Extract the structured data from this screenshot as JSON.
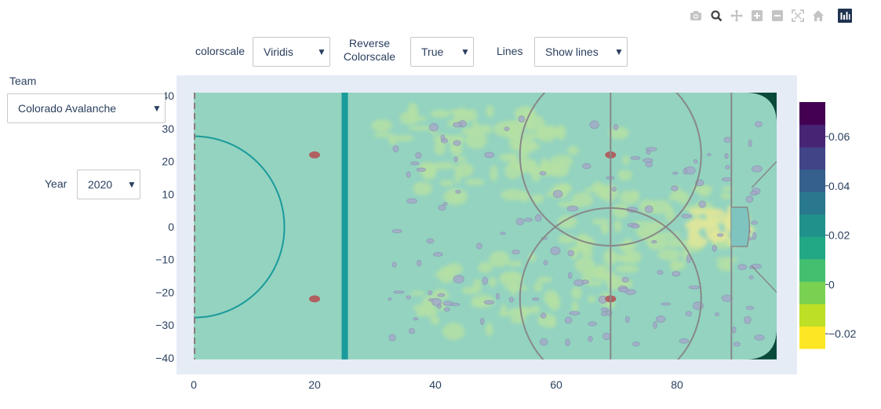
{
  "modebar": {
    "icons": [
      "camera-icon",
      "zoom-icon",
      "pan-icon",
      "zoom-in-icon",
      "zoom-out-icon",
      "autoscale-icon",
      "home-icon",
      "plotly-logo-icon"
    ]
  },
  "controls": {
    "colorscale": {
      "label": "colorscale",
      "value": "Viridis"
    },
    "reverse": {
      "label_line1": "Reverse",
      "label_line2": "Colorscale",
      "value": "True"
    },
    "lines": {
      "label": "Lines",
      "value": "Show lines"
    },
    "team": {
      "label": "Team",
      "value": "Colorado Avalanche"
    },
    "year": {
      "label": "Year",
      "value": "2020"
    }
  },
  "colors": {
    "plot_bg": "#e5ecf6",
    "rink_fill": "#93d3c0",
    "contour_light": "#b5e0a3",
    "contour_mid": "#a4a8c8",
    "contour_high": "#dfe69a",
    "line_teal": "#1a9a9a",
    "line_red": "#b06060",
    "line_gray": "#888888",
    "dark_corner": "#0a4a3a"
  },
  "chart_data": {
    "type": "heatmap",
    "x_ticks": [
      "0",
      "20",
      "40",
      "60",
      "80"
    ],
    "x_tick_values": [
      0,
      20,
      40,
      60,
      80
    ],
    "y_ticks": [
      "40",
      "30",
      "20",
      "10",
      "0",
      "−10",
      "−20",
      "−30",
      "−40"
    ],
    "y_tick_values": [
      40,
      30,
      20,
      10,
      0,
      -10,
      -20,
      -30,
      -40
    ],
    "xlim": [
      -3,
      100
    ],
    "ylim": [
      -42.5,
      42.5
    ],
    "colorbar": {
      "colorscale": "Viridis",
      "reversed": true,
      "range": [
        -0.026,
        0.074
      ],
      "tick_labels": [
        "0.06",
        "0.04",
        "0.02",
        "0",
        "−0.02"
      ],
      "tick_values": [
        0.06,
        0.04,
        0.02,
        0,
        -0.02
      ],
      "levels": [
        "#fde725",
        "#bddf26",
        "#7ad151",
        "#44bf70",
        "#22a884",
        "#21918c",
        "#2a788e",
        "#355f8d",
        "#414487",
        "#482475",
        "#440154"
      ]
    },
    "rink": {
      "goal_line_x": 0,
      "blue_line_x": 25,
      "center_line_x": 89,
      "neutral_dots": [
        {
          "x": 20,
          "y": 22
        },
        {
          "x": 20,
          "y": -22
        }
      ],
      "faceoff_circles": [
        {
          "x": 69,
          "y": 22,
          "r": 15
        },
        {
          "x": 69,
          "y": -22,
          "r": 15
        }
      ],
      "faceoff_dots": [
        {
          "x": 69,
          "y": 22
        },
        {
          "x": 69,
          "y": -22
        }
      ],
      "center_circle": {
        "x": 0,
        "y": 0,
        "r": 15
      }
    }
  }
}
